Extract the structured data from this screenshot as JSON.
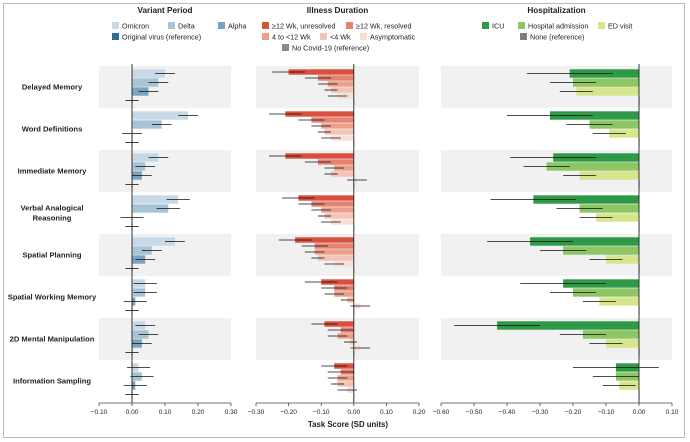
{
  "chart_data": {
    "type": "bar",
    "orientation": "horizontal",
    "xlabel": "Task Score (SD units)",
    "categories": [
      "Delayed Memory",
      "Word Definitions",
      "Immediate Memory",
      "Verbal Analogical Reasoning",
      "Spatial Planning",
      "Spatial Working Memory",
      "2D Mental Manipulation",
      "Information Sampling"
    ],
    "category_lines": [
      [
        "Delayed Memory"
      ],
      [
        "Word Definitions"
      ],
      [
        "Immediate Memory"
      ],
      [
        "Verbal Analogical",
        "Reasoning"
      ],
      [
        "Spatial Planning"
      ],
      [
        "Spatial Working Memory"
      ],
      [
        "2D Mental Manipulation"
      ],
      [
        "Information Sampling"
      ]
    ],
    "panels": [
      {
        "title": "Variant Period",
        "xlim": [
          -0.1,
          0.3
        ],
        "ticks": [
          -0.1,
          0.0,
          0.1,
          0.2,
          0.3
        ],
        "tick_labels": [
          "−0.10",
          "0.00",
          "0.10",
          "0.20",
          "0.30"
        ],
        "legend_rows": [
          [
            "Omicron",
            "Delta",
            "Alpha"
          ],
          [
            "Original virus (reference)"
          ]
        ],
        "series": [
          {
            "name": "Omicron",
            "color": "#c7d9e6",
            "values": [
              0.1,
              0.17,
              0.08,
              0.14,
              0.13,
              0.04,
              0.04,
              0.02
            ],
            "err": [
              0.03,
              0.03,
              0.03,
              0.035,
              0.03,
              0.035,
              0.03,
              0.035
            ]
          },
          {
            "name": "Delta",
            "color": "#a7c3d6",
            "values": [
              0.08,
              0.09,
              0.04,
              0.11,
              0.06,
              0.04,
              0.05,
              0.03
            ],
            "err": [
              0.03,
              0.03,
              0.03,
              0.035,
              0.03,
              0.035,
              0.03,
              0.035
            ]
          },
          {
            "name": "Alpha",
            "color": "#7ba3bf",
            "values": [
              0.05,
              0.0,
              0.03,
              0.0,
              0.04,
              0.01,
              0.03,
              0.01
            ],
            "err": [
              0.03,
              0.03,
              0.03,
              0.035,
              0.03,
              0.035,
              0.03,
              0.035
            ]
          },
          {
            "name": "Original virus (reference)",
            "color": "#2f6b95",
            "values": [
              0.0,
              0.0,
              0.0,
              0.0,
              0.0,
              0.0,
              0.0,
              0.0
            ],
            "err": [
              0.02,
              0.02,
              0.02,
              0.02,
              0.02,
              0.02,
              0.02,
              0.02
            ]
          }
        ]
      },
      {
        "title": "Illness Duration",
        "xlim": [
          -0.3,
          0.2
        ],
        "ticks": [
          -0.3,
          -0.2,
          -0.1,
          0.0,
          0.1,
          0.2
        ],
        "tick_labels": [
          "−0.30",
          "−0.20",
          "−0.10",
          "0.00",
          "0.10",
          "0.20"
        ],
        "legend_rows": [
          [
            "≥12 Wk, unresolved",
            "≥12 Wk, resolved"
          ],
          [
            "4 to <12 Wk",
            "<4 Wk",
            "Asymptomatic"
          ],
          [
            "No Covid-19 (reference)"
          ]
        ],
        "series": [
          {
            "name": "≥12 Wk, unresolved",
            "color": "#d9503f",
            "values": [
              -0.2,
              -0.21,
              -0.21,
              -0.17,
              -0.18,
              -0.1,
              -0.09,
              -0.06
            ],
            "err": [
              0.05,
              0.05,
              0.05,
              0.05,
              0.05,
              0.05,
              0.04,
              0.04
            ]
          },
          {
            "name": "≥12 Wk, resolved",
            "color": "#e58270",
            "values": [
              -0.11,
              -0.13,
              -0.11,
              -0.13,
              -0.12,
              -0.06,
              -0.04,
              -0.04
            ],
            "err": [
              0.04,
              0.04,
              0.04,
              0.04,
              0.04,
              0.04,
              0.04,
              0.04
            ]
          },
          {
            "name": "4 to <12 Wk",
            "color": "#eca08c",
            "values": [
              -0.08,
              -0.1,
              -0.06,
              -0.1,
              -0.12,
              -0.06,
              -0.05,
              -0.05
            ],
            "err": [
              0.03,
              0.03,
              0.03,
              0.03,
              0.03,
              0.03,
              0.03,
              0.03
            ]
          },
          {
            "name": "<4 Wk",
            "color": "#f3c3b4",
            "values": [
              -0.07,
              -0.09,
              -0.07,
              -0.09,
              -0.11,
              -0.02,
              -0.01,
              -0.05
            ],
            "err": [
              0.02,
              0.02,
              0.02,
              0.02,
              0.02,
              0.02,
              0.02,
              0.02
            ]
          },
          {
            "name": "Asymptomatic",
            "color": "#f7dfd6",
            "values": [
              -0.05,
              -0.07,
              0.01,
              -0.07,
              -0.06,
              0.02,
              0.02,
              -0.02
            ],
            "err": [
              0.03,
              0.03,
              0.03,
              0.03,
              0.03,
              0.03,
              0.03,
              0.03
            ]
          },
          {
            "name": "No Covid-19 (reference)",
            "color": "#8a8a8a",
            "values": [
              0.0,
              0.0,
              0.0,
              0.0,
              0.0,
              0.0,
              0.0,
              0.0
            ],
            "err": [
              0.0,
              0.0,
              0.0,
              0.0,
              0.0,
              0.0,
              0.0,
              0.0
            ]
          }
        ]
      },
      {
        "title": "Hospitalization",
        "xlim": [
          -0.6,
          0.1
        ],
        "ticks": [
          -0.6,
          -0.5,
          -0.4,
          -0.3,
          -0.2,
          -0.1,
          0.0,
          0.1
        ],
        "tick_labels": [
          "−0.60",
          "−0.50",
          "−0.40",
          "−0.30",
          "−0.20",
          "−0.10",
          "0.00",
          "0.10"
        ],
        "legend_rows": [
          [
            "ICU",
            "Hospital admission",
            "ED visit"
          ],
          [
            "None (reference)"
          ]
        ],
        "series": [
          {
            "name": "ICU",
            "color": "#2e9a48",
            "values": [
              -0.21,
              -0.27,
              -0.26,
              -0.32,
              -0.33,
              -0.23,
              -0.43,
              -0.07
            ],
            "err": [
              0.13,
              0.13,
              0.13,
              0.13,
              0.13,
              0.13,
              0.13,
              0.13
            ]
          },
          {
            "name": "Hospital admission",
            "color": "#8cc665",
            "values": [
              -0.2,
              -0.15,
              -0.28,
              -0.18,
              -0.23,
              -0.2,
              -0.17,
              -0.07
            ],
            "err": [
              0.07,
              0.07,
              0.07,
              0.07,
              0.07,
              0.07,
              0.07,
              0.07
            ]
          },
          {
            "name": "ED visit",
            "color": "#d7e58c",
            "values": [
              -0.19,
              -0.09,
              -0.18,
              -0.13,
              -0.1,
              -0.12,
              -0.1,
              -0.06
            ],
            "err": [
              0.05,
              0.05,
              0.05,
              0.05,
              0.05,
              0.05,
              0.05,
              0.05
            ]
          },
          {
            "name": "None (reference)",
            "color": "#7c7c7c",
            "values": [
              0.0,
              0.0,
              0.0,
              0.0,
              0.0,
              0.0,
              0.0,
              0.0
            ],
            "err": [
              0.0,
              0.0,
              0.0,
              0.0,
              0.0,
              0.0,
              0.0,
              0.0
            ]
          }
        ]
      }
    ]
  }
}
